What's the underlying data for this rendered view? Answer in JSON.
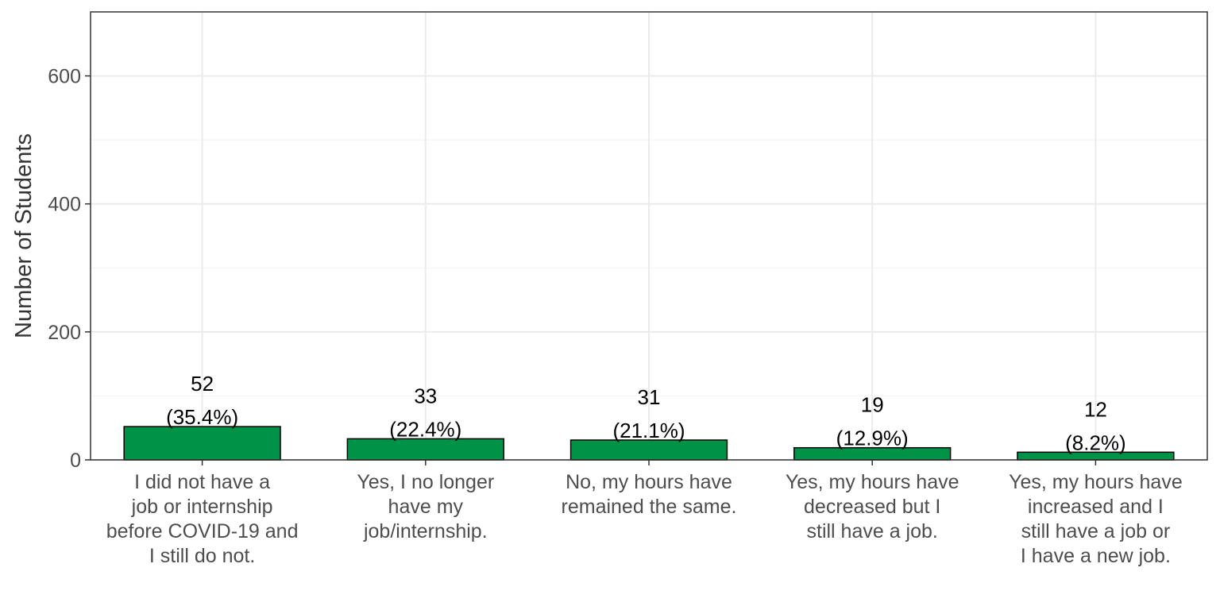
{
  "chart_data": {
    "type": "bar",
    "title": "",
    "xlabel": "",
    "ylabel": "Number of Students",
    "ylim": [
      0,
      700
    ],
    "yticks": [
      0,
      200,
      400,
      600
    ],
    "grid": true,
    "legend": "none",
    "categories": [
      [
        "I did not have a",
        "job or internship",
        "before COVID-19 and",
        "I still do not."
      ],
      [
        "Yes, I no longer",
        "have my",
        "job/internship."
      ],
      [
        "No, my hours have",
        "remained the same."
      ],
      [
        "Yes, my hours have",
        "decreased but I",
        "still have a job."
      ],
      [
        "Yes, my hours have",
        "increased and I",
        "still have a job or",
        "I have a new job."
      ]
    ],
    "values": [
      52,
      33,
      31,
      19,
      12
    ],
    "percent_labels": [
      "(35.4%)",
      "(22.4%)",
      "(21.1%)",
      "(12.9%)",
      "(8.2%)"
    ],
    "bar_color": "#009247",
    "bar_outline": "#000000"
  }
}
